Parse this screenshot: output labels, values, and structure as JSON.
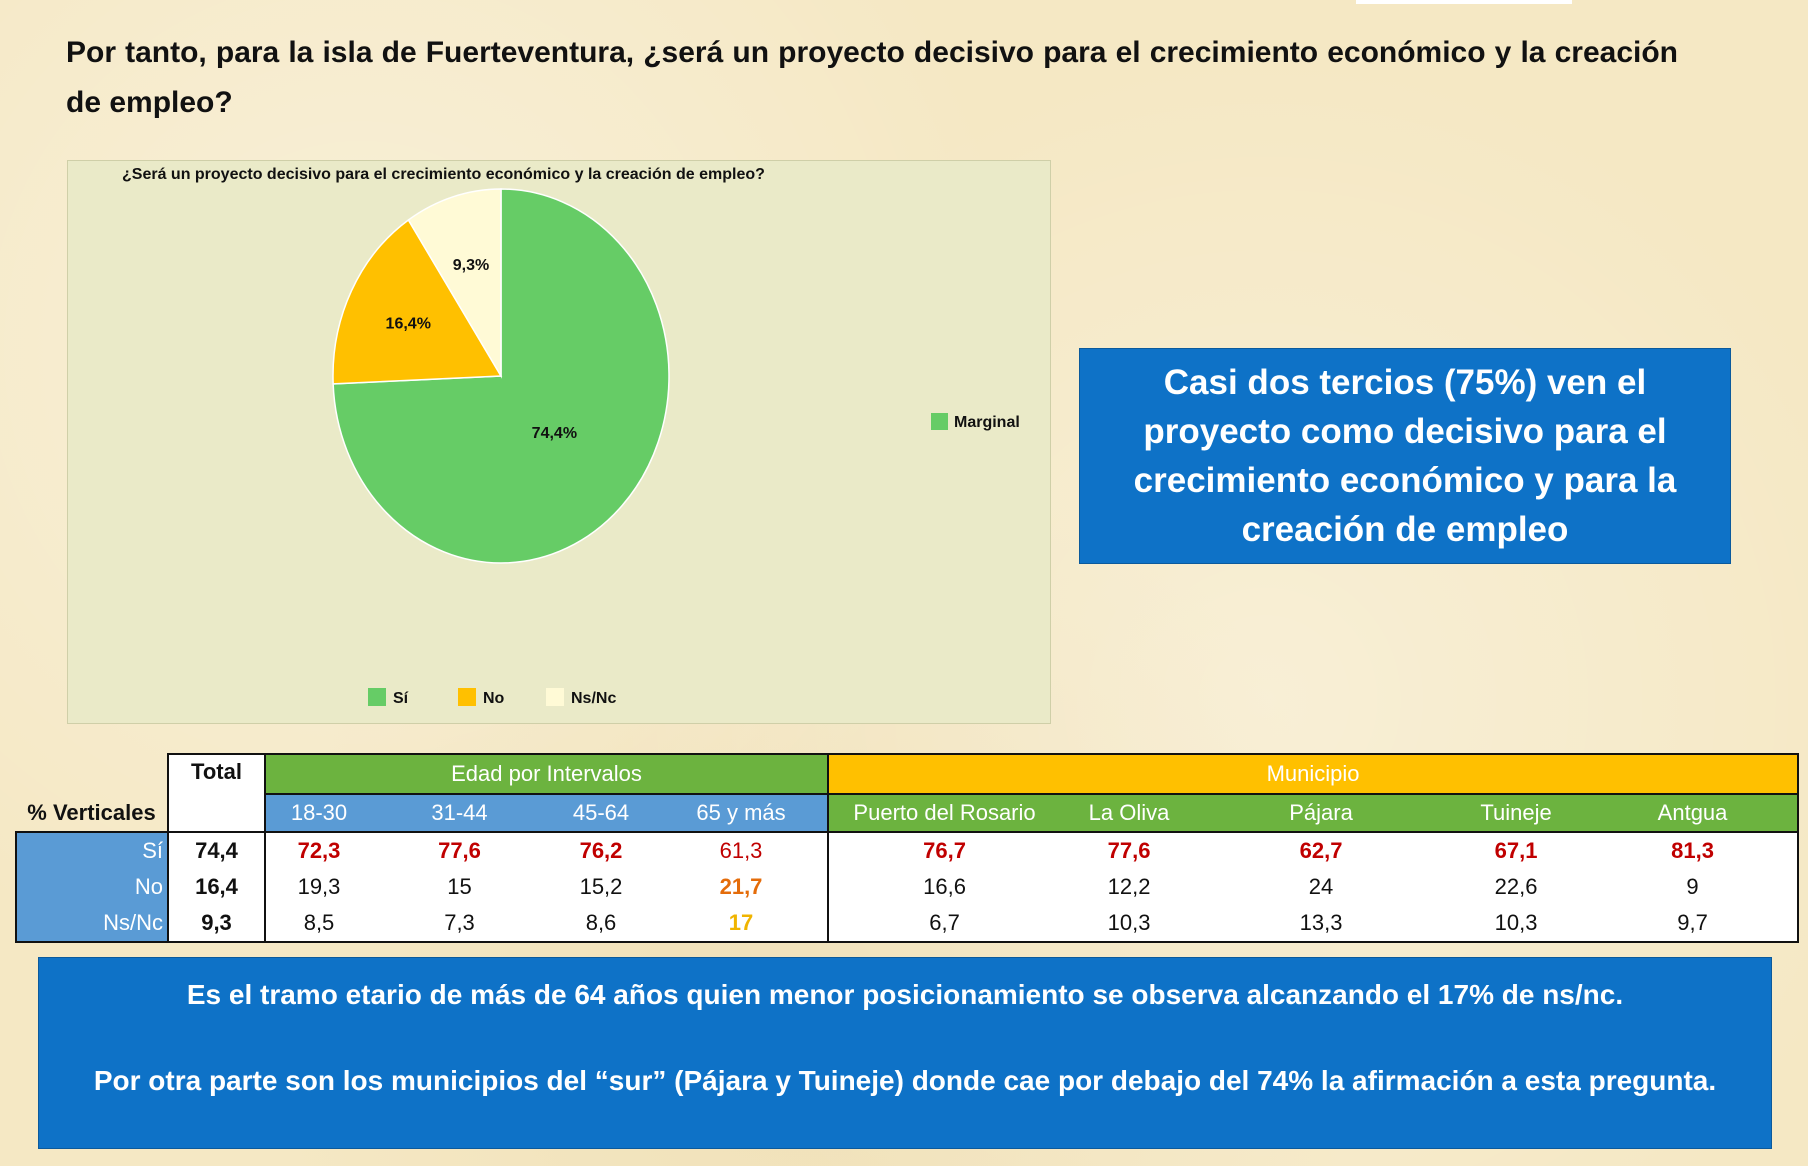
{
  "page": {
    "title": "Por tanto, para la isla de Fuerteventura, ¿será un proyecto decisivo para  el crecimiento económico y la creación de empleo?"
  },
  "chart_data": {
    "type": "pie",
    "title": "¿Será un proyecto decisivo para  el crecimiento económico y la creación de empleo?",
    "slices": [
      {
        "label": "Sí",
        "value": 74.4,
        "display": "74,4%",
        "color": "#66cc66"
      },
      {
        "label": "No",
        "value": 16.4,
        "display": "16,4%",
        "color": "#ffc000"
      },
      {
        "label": "Ns/Nc",
        "value": 9.3,
        "display": "9,3%",
        "color": "#fffad6"
      }
    ],
    "side_legend": [
      {
        "label": "Marginal",
        "color": "#66cc66"
      }
    ],
    "legend_position": "bottom"
  },
  "callout": {
    "text": "Casi dos tercios (75%) ven el proyecto como decisivo para el crecimiento económico y para la creación de empleo"
  },
  "table": {
    "corner_label": "% Verticales",
    "total_header": "Total",
    "group_edad": "Edad por Intervalos",
    "group_municipio": "Municipio",
    "age_columns": [
      "18-30",
      "31-44",
      "45-64",
      "65 y más"
    ],
    "muni_columns": [
      "Puerto del Rosario",
      "La Oliva",
      "Pájara",
      "Tuineje",
      "Antgua"
    ],
    "rows": [
      {
        "label": "Sí",
        "total": "74,4",
        "age": [
          "72,3",
          "77,6",
          "76,2",
          "61,3"
        ],
        "muni": [
          "76,7",
          "77,6",
          "62,7",
          "67,1",
          "81,3"
        ]
      },
      {
        "label": "No",
        "total": "16,4",
        "age": [
          "19,3",
          "15",
          "15,2",
          "21,7"
        ],
        "muni": [
          "16,6",
          "12,2",
          "24",
          "22,6",
          "9"
        ]
      },
      {
        "label": "Ns/Nc",
        "total": "9,3",
        "age": [
          "8,5",
          "7,3",
          "8,6",
          "17"
        ],
        "muni": [
          "6,7",
          "10,3",
          "13,3",
          "10,3",
          "9,7"
        ]
      }
    ]
  },
  "bottom_box": {
    "line1": "Es el tramo etario de más de 64 años quien menor posicionamiento se observa  alcanzando el 17% de ns/nc.",
    "line2": "Por otra parte son los municipios del “sur” (Pájara y Tuineje) donde cae por debajo del 74% la afirmación a esta pregunta."
  }
}
